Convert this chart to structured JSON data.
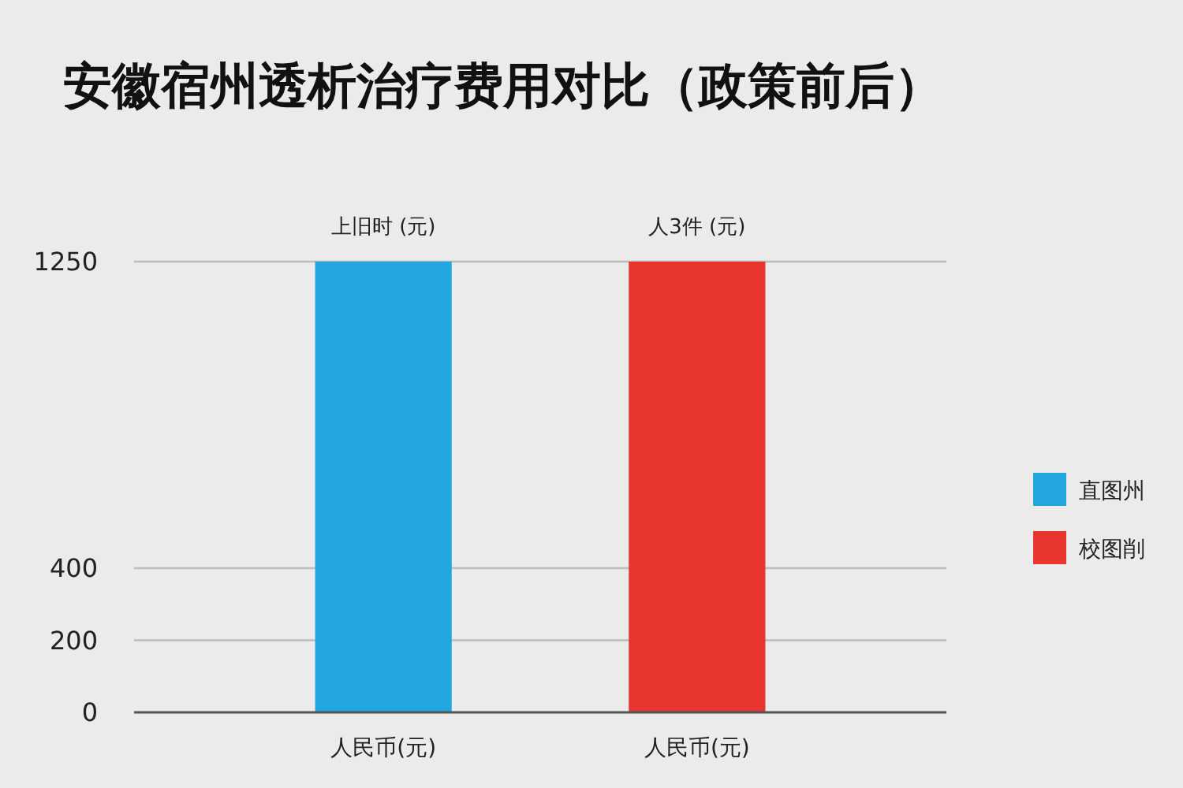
{
  "chart_data": {
    "type": "bar",
    "title": "安徽宿州透析治疗费用对比（政策前后）",
    "categories": [
      "人民币(元)",
      "人民币(元)"
    ],
    "series": [
      {
        "name": "直图州",
        "color": "#22a6e0",
        "values": [
          1250,
          null
        ]
      },
      {
        "name": "校图削",
        "color": "#e8352f",
        "values": [
          null,
          1250
        ]
      }
    ],
    "ylim": [
      0,
      1250
    ],
    "yticks": [
      0,
      200,
      400,
      1250
    ],
    "grid": "y",
    "legend": "right",
    "annotations": [
      "上旧时 (元)",
      "人3件 (元)"
    ]
  }
}
